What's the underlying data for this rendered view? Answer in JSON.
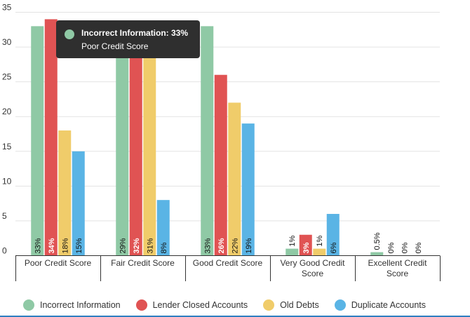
{
  "chart_data": {
    "type": "bar",
    "categories": [
      "Poor Credit Score",
      "Fair Credit Score",
      "Good Credit Score",
      "Very Good Credit Score",
      "Excellent Credit Score"
    ],
    "ylim": [
      0,
      35
    ],
    "yticks": [
      0,
      5,
      10,
      15,
      20,
      25,
      30,
      35
    ],
    "grid": true,
    "legend_position": "bottom",
    "series": [
      {
        "name": "Incorrect Information",
        "color": "#8fc9a5",
        "values": [
          33,
          29,
          33,
          1,
          0.5
        ],
        "labels": [
          "33%",
          "29%",
          "33%",
          "1%",
          "0.5%"
        ]
      },
      {
        "name": "Lender Closed Accounts",
        "color": "#e05353",
        "values": [
          34,
          32,
          26,
          3,
          0
        ],
        "labels": [
          "34%",
          "32%",
          "26%",
          "3%",
          "0%"
        ]
      },
      {
        "name": "Old Debts",
        "color": "#f0cc6a",
        "values": [
          18,
          31,
          22,
          1,
          0
        ],
        "labels": [
          "18%",
          "31%",
          "22%",
          "1%",
          "0%"
        ]
      },
      {
        "name": "Duplicate Accounts",
        "color": "#5ab4e5",
        "values": [
          15,
          8,
          19,
          6,
          0
        ],
        "labels": [
          "15%",
          "8%",
          "19%",
          "6%",
          "0%"
        ]
      }
    ]
  },
  "tooltip": {
    "line1": "Incorrect Information: 33%",
    "line2": "Poor Credit Score",
    "color": "#8fc9a5"
  }
}
